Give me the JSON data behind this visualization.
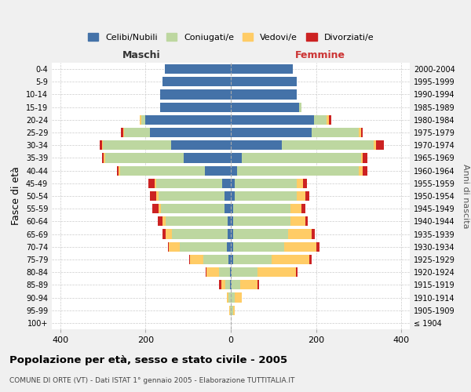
{
  "age_groups": [
    "100+",
    "95-99",
    "90-94",
    "85-89",
    "80-84",
    "75-79",
    "70-74",
    "65-69",
    "60-64",
    "55-59",
    "50-54",
    "45-49",
    "40-44",
    "35-39",
    "30-34",
    "25-29",
    "20-24",
    "15-19",
    "10-14",
    "5-9",
    "0-4"
  ],
  "birth_years": [
    "≤ 1904",
    "1905-1909",
    "1910-1914",
    "1915-1919",
    "1920-1924",
    "1925-1929",
    "1930-1934",
    "1935-1939",
    "1940-1944",
    "1945-1949",
    "1950-1954",
    "1955-1959",
    "1960-1964",
    "1965-1969",
    "1970-1974",
    "1975-1979",
    "1980-1984",
    "1985-1989",
    "1990-1994",
    "1995-1999",
    "2000-2004"
  ],
  "maschi": {
    "celibi": [
      0,
      0,
      0,
      2,
      2,
      5,
      10,
      8,
      8,
      14,
      15,
      20,
      60,
      110,
      140,
      190,
      200,
      165,
      165,
      160,
      155
    ],
    "coniugati": [
      0,
      2,
      5,
      10,
      25,
      60,
      110,
      130,
      145,
      150,
      155,
      155,
      200,
      185,
      160,
      60,
      10,
      0,
      0,
      0,
      0
    ],
    "vedovi": [
      0,
      2,
      5,
      10,
      30,
      30,
      25,
      15,
      8,
      5,
      5,
      3,
      3,
      3,
      3,
      3,
      3,
      0,
      0,
      0,
      0
    ],
    "divorziati": [
      0,
      0,
      0,
      5,
      2,
      3,
      3,
      8,
      10,
      15,
      15,
      15,
      5,
      5,
      5,
      5,
      0,
      0,
      0,
      0,
      0
    ]
  },
  "femmine": {
    "nubili": [
      0,
      0,
      0,
      2,
      2,
      5,
      5,
      5,
      5,
      5,
      10,
      10,
      15,
      25,
      120,
      190,
      195,
      160,
      155,
      155,
      145
    ],
    "coniugate": [
      0,
      5,
      10,
      20,
      60,
      90,
      120,
      130,
      135,
      135,
      145,
      145,
      285,
      280,
      215,
      110,
      30,
      5,
      0,
      0,
      0
    ],
    "vedove": [
      0,
      5,
      15,
      40,
      90,
      90,
      75,
      55,
      35,
      25,
      20,
      15,
      10,
      5,
      5,
      5,
      5,
      0,
      0,
      0,
      0
    ],
    "divorziate": [
      0,
      0,
      0,
      5,
      5,
      5,
      8,
      8,
      5,
      10,
      10,
      8,
      10,
      10,
      20,
      5,
      5,
      0,
      0,
      0,
      0
    ]
  },
  "colors": {
    "celibi": "#4472A8",
    "coniugati": "#BDD7A0",
    "vedovi": "#FFCC66",
    "divorziati": "#CC2222"
  },
  "xlim": 420,
  "title": "Popolazione per età, sesso e stato civile - 2005",
  "subtitle": "COMUNE DI ORTE (VT) - Dati ISTAT 1° gennaio 2005 - Elaborazione TUTTITALIA.IT",
  "ylabel_left": "Fasce di età",
  "ylabel_right": "Anni di nascita",
  "xlabel_maschi": "Maschi",
  "xlabel_femmine": "Femmine",
  "legend_labels": [
    "Celibi/Nubili",
    "Coniugati/e",
    "Vedovi/e",
    "Divorziati/e"
  ],
  "bg_color": "#f0f0f0",
  "plot_bg": "#ffffff"
}
